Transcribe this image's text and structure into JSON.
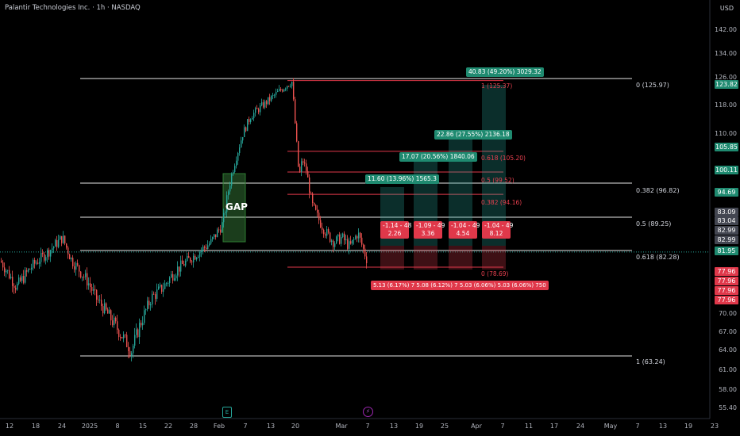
{
  "header": {
    "title": "Palantir Technologies Inc. · 1h · NASDAQ",
    "currency": "USD"
  },
  "price_axis": {
    "ticks": [
      "142.00",
      "134.00",
      "126.00",
      "118.00",
      "110.00",
      "100.11",
      "94.69",
      "83.09",
      "83.04",
      "82.99",
      "82.99",
      "81.95",
      "77.96",
      "77.96",
      "77.96",
      "77.96",
      "70.00",
      "67.00",
      "64.00",
      "61.00",
      "58.00",
      "55.40"
    ],
    "plain_ticks": [
      "142.00",
      "134.00",
      "126.00",
      "118.00",
      "110.00",
      "70.00",
      "67.00",
      "64.00",
      "61.00",
      "58.00",
      "55.40"
    ],
    "boxes": [
      {
        "text": "123.82",
        "color": "#1f8a70"
      },
      {
        "text": "105.85",
        "color": "#1f8a70"
      },
      {
        "text": "100.11",
        "color": "#1f8a70"
      },
      {
        "text": "94.69",
        "color": "#1f8a70"
      },
      {
        "text": "83.09",
        "color": "#434651"
      },
      {
        "text": "83.04",
        "color": "#434651"
      },
      {
        "text": "82.99",
        "color": "#434651"
      },
      {
        "text": "82.99",
        "color": "#434651"
      },
      {
        "text": "81.95",
        "color": "#1f8a70"
      },
      {
        "text": "77.96",
        "color": "#e0384a"
      },
      {
        "text": "77.96",
        "color": "#e0384a"
      },
      {
        "text": "77.96",
        "color": "#e0384a"
      },
      {
        "text": "77.96",
        "color": "#e0384a"
      }
    ]
  },
  "time_axis": [
    "12",
    "18",
    "24",
    "2025",
    "8",
    "15",
    "22",
    "28",
    "Feb",
    "7",
    "13",
    "20",
    "Mar",
    "7",
    "13",
    "19",
    "25",
    "Apr",
    "7",
    "11",
    "17",
    "24",
    "May",
    "7",
    "13",
    "19",
    "23"
  ],
  "fib_white": [
    {
      "label": "0 (125.97)"
    },
    {
      "label": "0.382 (96.82)"
    },
    {
      "label": "0.5 (89.25)"
    },
    {
      "label": "0.618 (82.28)"
    },
    {
      "label": "1 (63.24)"
    }
  ],
  "fib_red": [
    {
      "label": "1 (125.37)"
    },
    {
      "label": "0.618 (105.20)"
    },
    {
      "label": "0.5 (99.52)"
    },
    {
      "label": "0.382 (94.16)"
    },
    {
      "label": "0 (78.69)"
    }
  ],
  "gap_label": "GAP",
  "green_tags": [
    {
      "text": "40.83 (49.20%) 3029.32"
    },
    {
      "text": "22.86 (27.55%) 2136.18"
    },
    {
      "text": "17.07 (20.56%) 1840.06"
    },
    {
      "text": "11.60 (13.96%) 1565.3"
    }
  ],
  "red_tags": [
    {
      "line1": "-1.14 - 48",
      "line2": "2.26"
    },
    {
      "line1": "-1.09 - 49",
      "line2": "3.36"
    },
    {
      "line1": "-1.04 - 49",
      "line2": "4.54"
    },
    {
      "line1": "-1.04 - 49",
      "line2": "8.12"
    }
  ],
  "bottom_tag": "5.13 (6.17%) 7 5.08 (6.12%) 7 5.03 (6.06%) 5.03 (6.06%) 750",
  "colors": {
    "up": "#26a69a",
    "down": "#ef5350",
    "background": "#000000"
  }
}
